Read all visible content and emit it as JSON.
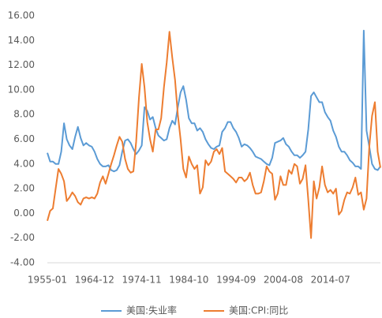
{
  "chart_data": {
    "type": "line",
    "categories": [
      "1955-01",
      null,
      null,
      null,
      null,
      null,
      null,
      null,
      null,
      null,
      null,
      null,
      null,
      null,
      null,
      null,
      null,
      "1964-12",
      null,
      null,
      null,
      null,
      null,
      null,
      null,
      null,
      null,
      null,
      null,
      null,
      null,
      null,
      null,
      null,
      "1974-11",
      null,
      null,
      null,
      null,
      null,
      null,
      null,
      null,
      null,
      null,
      null,
      null,
      null,
      null,
      null,
      null,
      "1984-10",
      null,
      null,
      null,
      null,
      null,
      null,
      null,
      null,
      null,
      null,
      null,
      null,
      null,
      null,
      null,
      null,
      "1994-09",
      null,
      null,
      null,
      null,
      null,
      null,
      null,
      null,
      null,
      null,
      null,
      null,
      null,
      null,
      null,
      null,
      "2004-08",
      null,
      null,
      null,
      null,
      null,
      null,
      null,
      null,
      null,
      null,
      null,
      null,
      null,
      null,
      null,
      null,
      "2014-07",
      null,
      null,
      null,
      null,
      null,
      null,
      null,
      null,
      null,
      null,
      null,
      null,
      null,
      null,
      null,
      null,
      null,
      null
    ],
    "series": [
      {
        "name": "美国:失业率",
        "color": "#5b9bd5",
        "values": [
          4.9,
          4.2,
          4.2,
          4.0,
          4.0,
          5.0,
          7.3,
          6.0,
          5.5,
          5.2,
          6.2,
          7.0,
          6.1,
          5.5,
          5.7,
          5.5,
          5.4,
          5.0,
          4.4,
          4.0,
          3.8,
          3.8,
          3.9,
          3.5,
          3.4,
          3.5,
          3.9,
          5.0,
          5.9,
          6.0,
          5.7,
          5.2,
          4.8,
          5.1,
          5.5,
          8.6,
          8.3,
          7.6,
          7.8,
          6.9,
          6.3,
          6.1,
          5.9,
          6.0,
          6.9,
          7.5,
          7.2,
          8.6,
          9.8,
          10.3,
          9.2,
          7.7,
          7.3,
          7.3,
          6.7,
          6.9,
          6.6,
          6.0,
          5.6,
          5.3,
          5.2,
          5.4,
          5.5,
          6.6,
          6.9,
          7.4,
          7.4,
          6.9,
          6.6,
          6.1,
          5.4,
          5.6,
          5.5,
          5.3,
          5.0,
          4.6,
          4.5,
          4.4,
          4.2,
          4.0,
          3.9,
          4.5,
          5.7,
          5.8,
          5.9,
          6.1,
          5.6,
          5.4,
          5.0,
          4.7,
          4.7,
          4.5,
          4.7,
          5.0,
          6.8,
          9.5,
          9.8,
          9.4,
          9.0,
          9.0,
          8.2,
          7.8,
          7.5,
          6.7,
          6.2,
          5.4,
          5.0,
          5.0,
          4.7,
          4.3,
          4.1,
          3.8,
          3.8,
          3.6,
          14.8,
          6.7,
          5.4,
          4.0,
          3.6,
          3.5,
          3.8
        ]
      },
      {
        "name": "美国:CPI:同比",
        "color": "#ed7d31",
        "values": [
          -0.6,
          0.2,
          0.4,
          2.0,
          3.6,
          3.2,
          2.6,
          1.0,
          1.3,
          1.7,
          1.4,
          0.9,
          0.7,
          1.2,
          1.3,
          1.2,
          1.3,
          1.2,
          1.6,
          2.5,
          3.0,
          2.4,
          3.2,
          4.0,
          4.7,
          5.5,
          6.2,
          5.8,
          4.4,
          3.6,
          3.3,
          3.4,
          5.8,
          9.4,
          12.1,
          10.2,
          7.4,
          6.0,
          5.0,
          6.8,
          6.8,
          7.7,
          10.2,
          12.2,
          14.7,
          12.6,
          10.8,
          8.0,
          6.0,
          3.6,
          2.9,
          4.6,
          4.0,
          3.6,
          3.9,
          1.6,
          2.1,
          4.3,
          3.9,
          4.2,
          5.0,
          5.2,
          4.8,
          5.3,
          3.4,
          3.2,
          3.0,
          2.8,
          2.5,
          2.9,
          2.9,
          2.6,
          2.8,
          3.3,
          2.3,
          1.6,
          1.6,
          1.7,
          2.6,
          3.8,
          3.4,
          3.2,
          1.1,
          1.6,
          3.0,
          2.3,
          2.3,
          3.5,
          3.2,
          4.0,
          3.8,
          2.4,
          2.8,
          3.9,
          1.1,
          -2.0,
          2.6,
          1.2,
          2.1,
          3.8,
          2.3,
          1.7,
          1.9,
          1.6,
          2.0,
          -0.1,
          0.2,
          1.1,
          1.7,
          1.6,
          2.1,
          2.9,
          1.5,
          1.7,
          0.3,
          1.2,
          5.4,
          7.9,
          9.0,
          5.0,
          3.7
        ]
      }
    ],
    "ylim": [
      -4,
      16
    ],
    "yticks": [
      {
        "value": -4,
        "label": "-4.00"
      },
      {
        "value": -2,
        "label": "-2.00"
      },
      {
        "value": 0,
        "label": "0.00"
      },
      {
        "value": 2,
        "label": "2.00"
      },
      {
        "value": 4,
        "label": "4.00"
      },
      {
        "value": 6,
        "label": "6.00"
      },
      {
        "value": 8,
        "label": "8.00"
      },
      {
        "value": 10,
        "label": "10.00"
      },
      {
        "value": 12,
        "label": "12.00"
      },
      {
        "value": 14,
        "label": "14.00"
      },
      {
        "value": 16,
        "label": "16.00"
      }
    ],
    "grid": false,
    "legend": "bottom"
  }
}
